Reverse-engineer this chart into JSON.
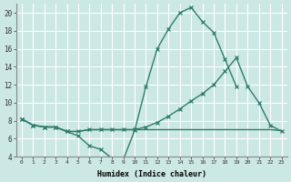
{
  "xlabel": "Humidex (Indice chaleur)",
  "background_color": "#cce8e4",
  "grid_color": "#ffffff",
  "line_color": "#2e7d6e",
  "xlim": [
    -0.5,
    23.5
  ],
  "ylim": [
    4,
    21
  ],
  "yticks": [
    4,
    6,
    8,
    10,
    12,
    14,
    16,
    18,
    20
  ],
  "xticks": [
    0,
    1,
    2,
    3,
    4,
    5,
    6,
    7,
    8,
    9,
    10,
    11,
    12,
    13,
    14,
    15,
    16,
    17,
    18,
    19,
    20,
    21,
    22,
    23
  ],
  "line_peak": {
    "x": [
      0,
      1,
      2,
      3,
      4,
      5,
      6,
      7,
      8,
      9,
      10,
      11,
      12,
      13,
      14,
      15,
      16,
      17,
      18,
      19
    ],
    "y": [
      8.2,
      7.5,
      7.3,
      7.3,
      6.8,
      6.3,
      5.2,
      4.8,
      3.8,
      3.7,
      6.9,
      11.8,
      16.0,
      18.2,
      20.0,
      20.6,
      19.0,
      17.8,
      14.8,
      11.8
    ]
  },
  "line_rising": {
    "x": [
      0,
      1,
      2,
      3,
      4,
      5,
      6,
      7,
      8,
      9,
      10,
      11,
      12,
      13,
      14,
      15,
      16,
      17,
      18,
      19,
      20,
      21,
      22,
      23
    ],
    "y": [
      8.2,
      7.5,
      7.3,
      7.3,
      6.8,
      6.8,
      7.0,
      7.0,
      7.0,
      7.0,
      7.0,
      7.3,
      7.8,
      8.5,
      9.3,
      10.2,
      11.0,
      12.0,
      13.5,
      15.0,
      11.8,
      10.0,
      7.5,
      6.8
    ]
  },
  "line_flat": {
    "x": [
      0,
      1,
      2,
      3,
      4,
      5,
      6,
      7,
      8,
      9,
      10,
      11,
      12,
      13,
      14,
      15,
      16,
      17,
      18,
      19,
      20,
      21,
      22,
      23
    ],
    "y": [
      8.2,
      7.5,
      7.3,
      7.3,
      6.8,
      6.8,
      7.0,
      7.0,
      7.0,
      7.0,
      7.0,
      7.0,
      7.0,
      7.0,
      7.0,
      7.0,
      7.0,
      7.0,
      7.0,
      7.0,
      7.0,
      7.0,
      7.0,
      6.9
    ]
  }
}
